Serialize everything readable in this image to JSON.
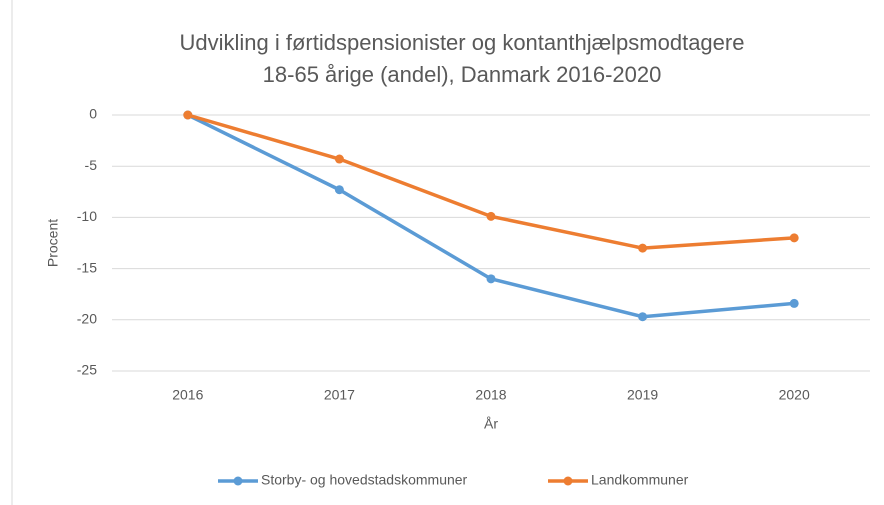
{
  "chart_data": {
    "type": "line",
    "title": [
      "Udvikling i førtidspensionister og kontanthjælpsmodtagere",
      "18-65 årige (andel), Danmark 2016-2020"
    ],
    "x_label": "År",
    "y_label": "Procent",
    "categories": [
      "2016",
      "2017",
      "2018",
      "2019",
      "2020"
    ],
    "series": [
      {
        "name": "Storby- og hovedstadskommuner",
        "color": "#5b9bd5",
        "values": [
          0,
          -7.3,
          -16,
          -19.7,
          -18.4
        ]
      },
      {
        "name": "Landkommuner",
        "color": "#ed7d31",
        "values": [
          0,
          -4.3,
          -9.9,
          -13,
          -12
        ]
      }
    ],
    "ylim": [
      -25,
      0
    ],
    "yticks": [
      0,
      -5,
      -10,
      -15,
      -20,
      -25
    ],
    "grid": true,
    "legend": "bottom"
  }
}
